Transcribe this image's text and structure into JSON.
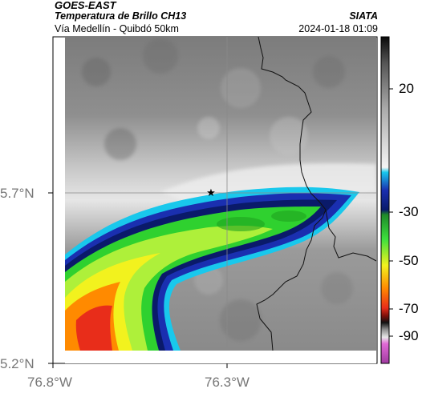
{
  "header": {
    "satellite": "GOES-EAST",
    "product": "Temperatura de Brillo CH13",
    "region": "Vía Medellín - Quibdó 50km",
    "agency": "SIATA",
    "timestamp": "2024-01-18 01:09"
  },
  "map": {
    "lat_labels": [
      "5.7°N",
      "5.2°N"
    ],
    "lon_labels": [
      "76.8°W",
      "76.3°W"
    ],
    "marker": "star-icon",
    "grid": true
  },
  "colorbar": {
    "ticks": [
      "20",
      "-30",
      "-50",
      "-70",
      "-90"
    ],
    "colors": {
      "warm_gray": "#7a7a7a",
      "cool_white": "#f0f0f0",
      "cyan": "#19c8ec",
      "blue": "#1a2fb0",
      "navy": "#0a1a6a",
      "green": "#2fd12f",
      "yellow": "#f2f21e",
      "orange": "#ff8a00",
      "red": "#e82d1a",
      "black": "#111111",
      "magenta": "#b83ab8"
    }
  }
}
